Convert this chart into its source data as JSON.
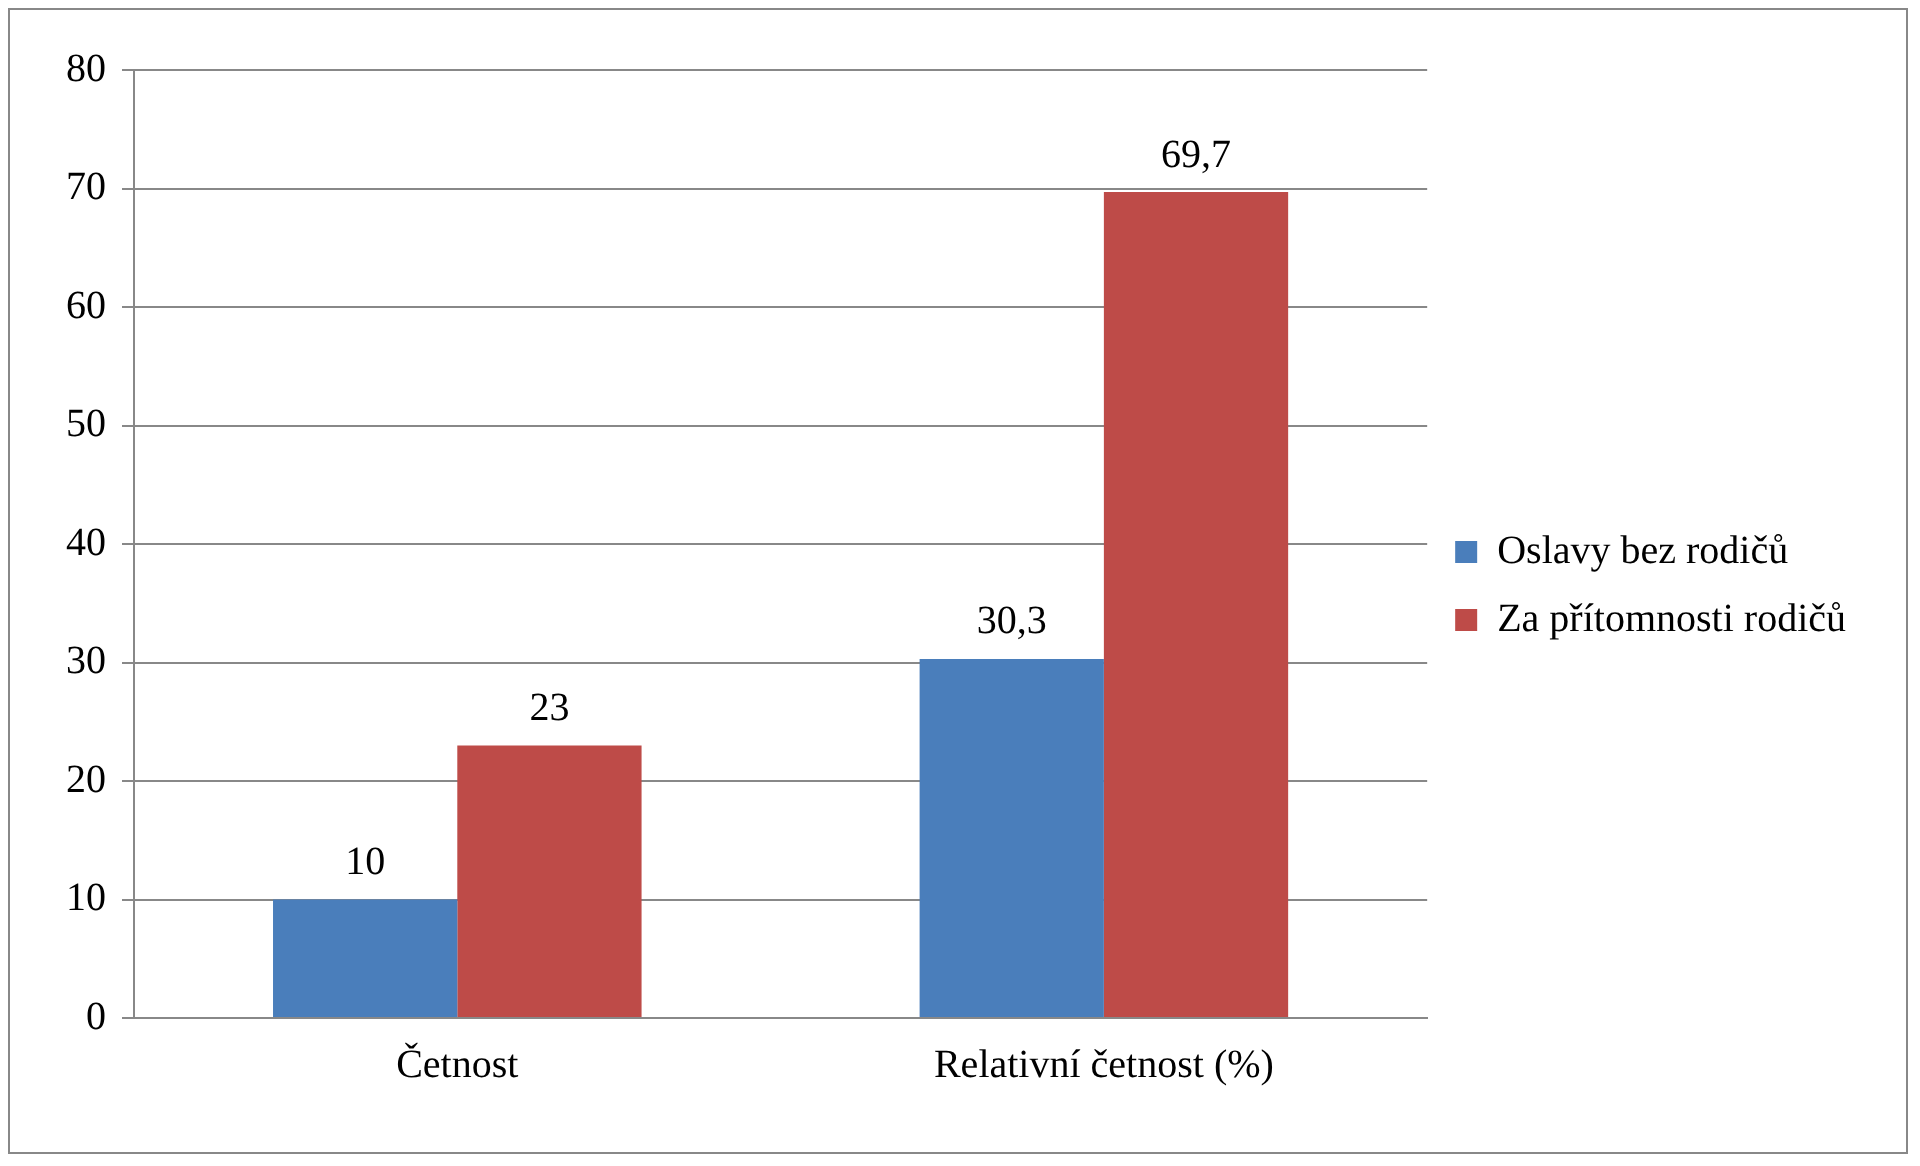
{
  "chart_data": {
    "type": "bar",
    "categories": [
      "Četnost",
      "Relativní četnost (%)"
    ],
    "series": [
      {
        "name": "Oslavy bez rodičů",
        "color": "#4a7ebb",
        "values": [
          10,
          30.3
        ],
        "value_labels": [
          "10",
          "30,3"
        ]
      },
      {
        "name": "Za přítomnosti rodičů",
        "color": "#be4b48",
        "values": [
          23,
          69.7
        ],
        "value_labels": [
          "23",
          "69,7"
        ]
      }
    ],
    "ylim": [
      0,
      80
    ],
    "yticks": [
      0,
      10,
      20,
      30,
      40,
      50,
      60,
      70,
      80
    ],
    "grid": "y",
    "legend": "right"
  }
}
